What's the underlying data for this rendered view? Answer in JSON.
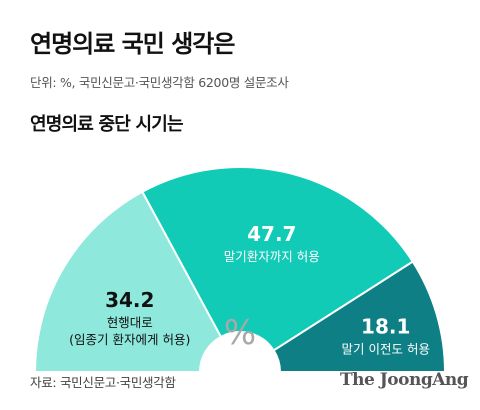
{
  "header": {
    "title": "연명의료 국민 생각은",
    "unit_line": "단위: %, 국민신문고·국민생각함 6200명 설문조사"
  },
  "chart_data": {
    "type": "pie",
    "variant": "semicircle-donut",
    "title": "연명의료 중단 시기는",
    "center_label": "%",
    "slices": [
      {
        "value": 34.2,
        "value_label": "34.2",
        "label_lines": [
          "현행대로",
          "(임종기 환자에게 허용)"
        ],
        "color": "#8ee8dc",
        "value_color": "#111111",
        "label_color": "#111111"
      },
      {
        "value": 47.7,
        "value_label": "47.7",
        "label_lines": [
          "말기환자까지 허용"
        ],
        "color": "#12cbb7",
        "value_color": "#ffffff",
        "label_color": "#ffffff"
      },
      {
        "value": 18.1,
        "value_label": "18.1",
        "label_lines": [
          "말기 이전도 허용"
        ],
        "color": "#0d7f85",
        "value_color": "#ffffff",
        "label_color": "#ffffff"
      }
    ],
    "accent_color": "#14b3a3"
  },
  "footer": {
    "source": "자료: 국민신문고·국민생각함",
    "brand": "The JoongAng"
  }
}
